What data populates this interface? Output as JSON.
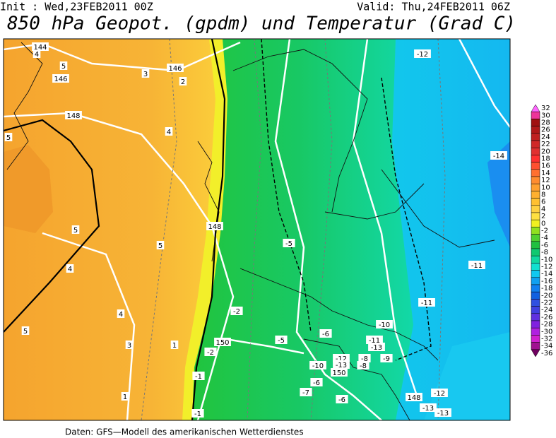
{
  "header": {
    "init": "Init : Wed,23FEB2011 00Z",
    "valid": "Valid: Thu,24FEB2011 06Z",
    "title": "850 hPa Geopot. (gpdm) und Temperatur (Grad C)"
  },
  "footer": "Daten: GFS—Modell des amerikanischen Wetterdienstes",
  "legend": {
    "labels": [
      32,
      30,
      28,
      26,
      24,
      22,
      20,
      18,
      16,
      14,
      12,
      10,
      8,
      6,
      4,
      2,
      0,
      -2,
      -4,
      -6,
      -8,
      -10,
      -12,
      -14,
      -16,
      -18,
      -20,
      -22,
      -24,
      -26,
      -28,
      -30,
      -32,
      -34,
      -36
    ],
    "colors": [
      "#ff66ff",
      "#ee3399",
      "#a01010",
      "#b01818",
      "#c02020",
      "#d02828",
      "#e03030",
      "#ff3030",
      "#ff5030",
      "#ff7030",
      "#ff8c30",
      "#ffa030",
      "#ffb030",
      "#ffc030",
      "#ffd040",
      "#ffe040",
      "#f0f020",
      "#90e020",
      "#50d030",
      "#20c040",
      "#10c870",
      "#10d8a0",
      "#10e0d0",
      "#10c8f0",
      "#10a0f0",
      "#1080f0",
      "#1060e0",
      "#3050e0",
      "#4040e0",
      "#6030e0",
      "#8020e0",
      "#b020e0",
      "#d020d0",
      "#a01090",
      "#700060"
    ]
  },
  "map": {
    "labels": [
      "144",
      "4",
      "5",
      "146",
      "3",
      "146",
      "2",
      "148",
      "5",
      "4",
      "148",
      "5",
      "5",
      "4",
      "-5",
      "4",
      "-2",
      "3",
      "1",
      "150",
      "-5",
      "-6",
      "-10",
      "-11",
      "-13",
      "-2",
      "-12",
      "-8",
      "-9",
      "-13",
      "-8",
      "-10",
      "150",
      "-1",
      "-6",
      "-7",
      "-6",
      "148",
      "-12",
      "-13",
      "-13",
      "1",
      "-1",
      "-12",
      "-14",
      "-11",
      "-11",
      "5"
    ]
  }
}
